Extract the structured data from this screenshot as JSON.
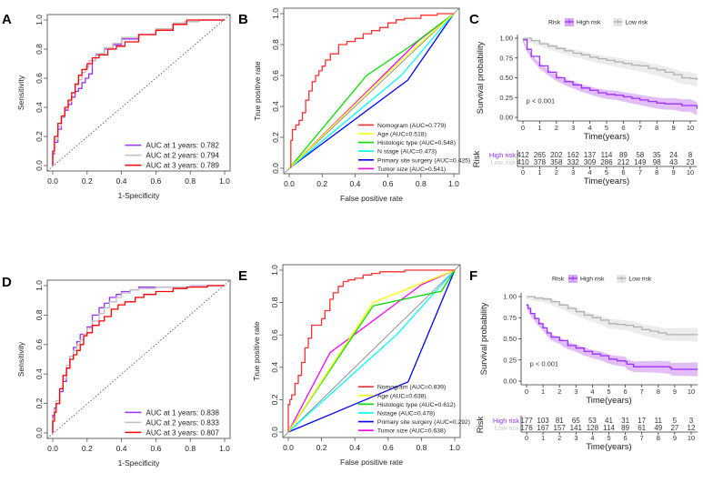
{
  "figure_panels": [
    "A",
    "B",
    "C",
    "D",
    "E",
    "F"
  ],
  "chart_data": [
    {
      "panel": "A",
      "type": "line",
      "title": "",
      "xlabel": "1-Specificity",
      "ylabel": "Sensitivity",
      "xlim": [
        0,
        1
      ],
      "ylim": [
        0,
        1
      ],
      "xticks": [
        "0.0",
        "0.2",
        "0.4",
        "0.6",
        "0.8",
        "1.0"
      ],
      "yticks": [
        "0.0",
        "0.2",
        "0.4",
        "0.6",
        "0.8",
        "1.0"
      ],
      "legend_position": "bottom-right",
      "reference_line": "diagonal-dotted",
      "series": [
        {
          "name": "AUC at 1 years: 0.782",
          "color": "#9B30FF",
          "x": [
            0,
            0.01,
            0.03,
            0.05,
            0.07,
            0.09,
            0.11,
            0.13,
            0.15,
            0.17,
            0.19,
            0.21,
            0.23,
            0.25,
            0.3,
            0.35,
            0.4,
            0.5,
            0.6,
            0.7,
            0.77,
            0.85,
            1.0
          ],
          "y": [
            0,
            0.08,
            0.16,
            0.25,
            0.33,
            0.38,
            0.42,
            0.47,
            0.51,
            0.53,
            0.57,
            0.6,
            0.63,
            0.72,
            0.76,
            0.8,
            0.83,
            0.87,
            0.9,
            0.93,
            0.97,
            0.99,
            1.0
          ]
        },
        {
          "name": "AUC at 2 years: 0.794",
          "color": "#BEBEBE",
          "x": [
            0,
            0.01,
            0.03,
            0.05,
            0.07,
            0.09,
            0.11,
            0.13,
            0.15,
            0.17,
            0.19,
            0.21,
            0.25,
            0.3,
            0.35,
            0.4,
            0.5,
            0.6,
            0.7,
            0.77,
            0.85,
            1.0
          ],
          "y": [
            0,
            0.09,
            0.18,
            0.27,
            0.33,
            0.39,
            0.44,
            0.5,
            0.55,
            0.59,
            0.64,
            0.68,
            0.72,
            0.77,
            0.81,
            0.84,
            0.88,
            0.9,
            0.94,
            0.98,
            0.99,
            1.0
          ]
        },
        {
          "name": "AUC at 3 years: 0.789",
          "color": "#FF0000",
          "x": [
            0,
            0.01,
            0.03,
            0.05,
            0.07,
            0.09,
            0.11,
            0.13,
            0.15,
            0.17,
            0.2,
            0.23,
            0.27,
            0.32,
            0.37,
            0.42,
            0.5,
            0.6,
            0.7,
            0.78,
            0.9,
            1.0
          ],
          "y": [
            0,
            0.1,
            0.2,
            0.29,
            0.34,
            0.4,
            0.45,
            0.5,
            0.56,
            0.62,
            0.66,
            0.7,
            0.74,
            0.76,
            0.8,
            0.82,
            0.85,
            0.9,
            0.93,
            0.97,
            1.0,
            1.0
          ]
        }
      ]
    },
    {
      "panel": "B",
      "type": "line",
      "title": "",
      "xlabel": "False positive rate",
      "ylabel": "True positive rate",
      "xlim": [
        0,
        1
      ],
      "ylim": [
        0,
        1
      ],
      "xticks": [
        "0.0",
        "0.2",
        "0.4",
        "0.6",
        "0.8",
        "1.0"
      ],
      "yticks": [
        "0.0",
        "0.2",
        "0.4",
        "0.6",
        "0.8",
        "1.0"
      ],
      "legend_position": "bottom-right",
      "reference_line": "diagonal-solid",
      "series": [
        {
          "name": "Nomogram (AUC=0.779)",
          "color": "#FF3030",
          "x": [
            0.01,
            0.01,
            0.02,
            0.04,
            0.06,
            0.08,
            0.1,
            0.12,
            0.14,
            0.16,
            0.18,
            0.2,
            0.22,
            0.25,
            0.3,
            0.35,
            0.4,
            0.45,
            0.5,
            0.55,
            0.6,
            0.65,
            0.7,
            0.8,
            0.9,
            0.92,
            1.0
          ],
          "y": [
            0,
            0.12,
            0.18,
            0.25,
            0.28,
            0.31,
            0.36,
            0.44,
            0.5,
            0.56,
            0.6,
            0.63,
            0.66,
            0.7,
            0.74,
            0.8,
            0.82,
            0.84,
            0.87,
            0.89,
            0.91,
            0.94,
            0.96,
            0.97,
            0.99,
            1.0,
            1.0
          ]
        },
        {
          "name": "Age (AUC=0.518)",
          "color": "#FFFF00",
          "x": [
            0,
            0.6,
            0.85,
            1.0
          ],
          "y": [
            0,
            0.62,
            0.86,
            1.0
          ]
        },
        {
          "name": "Histologic type (AUC=0.548)",
          "color": "#00DD00",
          "x": [
            0,
            0.47,
            0.75,
            1.0
          ],
          "y": [
            0,
            0.6,
            0.8,
            1.0
          ]
        },
        {
          "name": "N stage (AUC=0.473)",
          "color": "#00FFFF",
          "x": [
            0,
            0.68,
            1.0
          ],
          "y": [
            0,
            0.6,
            1.0
          ]
        },
        {
          "name": "Primary site surgery (AUC=0.425)",
          "color": "#0000FF",
          "x": [
            0,
            0.72,
            1.0
          ],
          "y": [
            0,
            0.57,
            1.0
          ]
        },
        {
          "name": "Tumor size (AUC=0.541)",
          "color": "#FF00FF",
          "x": [
            0,
            0.78,
            1.0
          ],
          "y": [
            0,
            0.82,
            1.0
          ]
        }
      ]
    },
    {
      "panel": "C",
      "type": "line",
      "subtype": "kaplan-meier",
      "xlabel": "Time(years)",
      "ylabel": "Survival probability",
      "xlim": [
        0,
        10.4
      ],
      "ylim": [
        0,
        1
      ],
      "xticks": [
        "0",
        "1",
        "2",
        "3",
        "4",
        "5",
        "6",
        "7",
        "8",
        "9",
        "10"
      ],
      "yticks": [
        "0.00",
        "0.25",
        "0.50",
        "0.75",
        "1.00"
      ],
      "legend_title": "Risk",
      "legend_position": "top",
      "annotation": "p < 0.001",
      "series": [
        {
          "name": "High risk",
          "color": "#9B30FF",
          "band_color": "#D8A8F5",
          "x": [
            0,
            0.25,
            0.5,
            1,
            1.5,
            2,
            2.5,
            3,
            3.5,
            4,
            4.5,
            5,
            5.5,
            6,
            6.5,
            7,
            7.5,
            8,
            8.5,
            9,
            9.5,
            10,
            10.4
          ],
          "y": [
            0.98,
            0.86,
            0.77,
            0.65,
            0.57,
            0.5,
            0.45,
            0.41,
            0.37,
            0.34,
            0.31,
            0.29,
            0.28,
            0.26,
            0.24,
            0.22,
            0.2,
            0.18,
            0.17,
            0.17,
            0.15,
            0.15,
            0.11
          ]
        },
        {
          "name": "Low risk",
          "color": "#B0B0B0",
          "band_color": "#E6E6E6",
          "x": [
            0,
            0.5,
            1,
            1.5,
            2,
            2.5,
            3,
            3.5,
            4,
            4.5,
            5,
            5.5,
            6,
            6.5,
            7,
            7.5,
            8,
            8.5,
            9,
            9.5,
            10,
            10.4
          ],
          "y": [
            1.0,
            0.97,
            0.93,
            0.9,
            0.87,
            0.84,
            0.81,
            0.79,
            0.76,
            0.74,
            0.72,
            0.7,
            0.68,
            0.66,
            0.65,
            0.62,
            0.6,
            0.57,
            0.54,
            0.5,
            0.49,
            0.47
          ]
        }
      ],
      "risk_table": {
        "title": "Risk",
        "times": [
          "0",
          "1",
          "2",
          "3",
          "4",
          "5",
          "6",
          "7",
          "8",
          "9",
          "10"
        ],
        "xlabel": "Time(years)",
        "rows": [
          {
            "name": "High risk",
            "values": [
              "412",
              "265",
              "202",
              "162",
              "137",
              "114",
              "89",
              "58",
              "35",
              "24",
              "8"
            ]
          },
          {
            "name": "Low risk",
            "values": [
              "410",
              "378",
              "358",
              "332",
              "309",
              "286",
              "212",
              "149",
              "98",
              "43",
              "23"
            ]
          }
        ]
      }
    },
    {
      "panel": "D",
      "type": "line",
      "xlabel": "1-Specificity",
      "ylabel": "Sensitivity",
      "xlim": [
        0,
        1
      ],
      "ylim": [
        0,
        1
      ],
      "xticks": [
        "0.0",
        "0.2",
        "0.4",
        "0.6",
        "0.8",
        "1.0"
      ],
      "yticks": [
        "0.0",
        "0.2",
        "0.4",
        "0.6",
        "0.8",
        "1.0"
      ],
      "legend_position": "bottom-right",
      "reference_line": "diagonal-dotted",
      "series": [
        {
          "name": "AUC at 1 years: 0.838",
          "color": "#9B30FF",
          "x": [
            0,
            0.01,
            0.02,
            0.04,
            0.06,
            0.08,
            0.1,
            0.12,
            0.14,
            0.16,
            0.18,
            0.2,
            0.23,
            0.27,
            0.3,
            0.33,
            0.37,
            0.4,
            0.45,
            0.5,
            0.6,
            0.8,
            1.0
          ],
          "y": [
            0,
            0.12,
            0.17,
            0.2,
            0.28,
            0.35,
            0.44,
            0.52,
            0.58,
            0.62,
            0.67,
            0.67,
            0.72,
            0.8,
            0.85,
            0.88,
            0.92,
            0.94,
            0.96,
            0.97,
            0.99,
            0.99,
            1.0
          ]
        },
        {
          "name": "AUC at 2 years: 0.833",
          "color": "#BEBEBE",
          "x": [
            0,
            0.01,
            0.02,
            0.04,
            0.06,
            0.08,
            0.1,
            0.12,
            0.14,
            0.16,
            0.18,
            0.2,
            0.23,
            0.27,
            0.3,
            0.33,
            0.37,
            0.4,
            0.45,
            0.5,
            0.6,
            0.8,
            1.0
          ],
          "y": [
            0,
            0.1,
            0.16,
            0.22,
            0.3,
            0.37,
            0.46,
            0.52,
            0.56,
            0.6,
            0.63,
            0.67,
            0.71,
            0.76,
            0.81,
            0.85,
            0.89,
            0.92,
            0.95,
            0.97,
            0.98,
            0.99,
            1.0
          ]
        },
        {
          "name": "AUC at 3 years: 0.807",
          "color": "#FF0000",
          "x": [
            0,
            0.01,
            0.02,
            0.04,
            0.06,
            0.08,
            0.1,
            0.12,
            0.14,
            0.16,
            0.18,
            0.2,
            0.23,
            0.27,
            0.3,
            0.34,
            0.38,
            0.42,
            0.48,
            0.53,
            0.6,
            0.7,
            0.78,
            0.9,
            1.0
          ],
          "y": [
            0,
            0.08,
            0.14,
            0.2,
            0.3,
            0.39,
            0.44,
            0.5,
            0.53,
            0.56,
            0.6,
            0.66,
            0.68,
            0.73,
            0.76,
            0.79,
            0.84,
            0.87,
            0.89,
            0.92,
            0.94,
            0.96,
            0.98,
            0.99,
            1.0
          ]
        }
      ]
    },
    {
      "panel": "E",
      "type": "line",
      "xlabel": "False positive rate",
      "ylabel": "True positive rate",
      "xlim": [
        0,
        1
      ],
      "ylim": [
        0,
        1
      ],
      "xticks": [
        "0.0",
        "0.2",
        "0.4",
        "0.6",
        "0.8",
        "1.0"
      ],
      "yticks": [
        "0.0",
        "0.2",
        "0.4",
        "0.6",
        "0.8",
        "1.0"
      ],
      "legend_position": "bottom-right",
      "reference_line": "diagonal-solid",
      "series": [
        {
          "name": "Nomogram (AUC=0.839)",
          "color": "#FF3030",
          "x": [
            0,
            0.0,
            0.01,
            0.02,
            0.04,
            0.06,
            0.08,
            0.1,
            0.12,
            0.14,
            0.16,
            0.2,
            0.22,
            0.25,
            0.27,
            0.3,
            0.33,
            0.36,
            0.4,
            0.45,
            0.5,
            0.55,
            0.6,
            0.7,
            1.0
          ],
          "y": [
            0,
            0.1,
            0.17,
            0.2,
            0.23,
            0.3,
            0.35,
            0.43,
            0.52,
            0.58,
            0.66,
            0.66,
            0.7,
            0.75,
            0.82,
            0.86,
            0.9,
            0.93,
            0.94,
            0.95,
            0.97,
            0.98,
            0.99,
            0.99,
            1.0
          ]
        },
        {
          "name": "Age (AUC=0.638)",
          "color": "#FFFF00",
          "x": [
            0,
            0.51,
            1.0
          ],
          "y": [
            0,
            0.8,
            1.0
          ]
        },
        {
          "name": "Histologic type (AUC=0.612)",
          "color": "#00DD00",
          "x": [
            0,
            0.51,
            0.92,
            1.0
          ],
          "y": [
            0,
            0.78,
            0.87,
            1.0
          ]
        },
        {
          "name": "Nstage (AUC=0.478)",
          "color": "#00FFFF",
          "x": [
            0,
            0.65,
            1.0
          ],
          "y": [
            0,
            0.6,
            1.0
          ]
        },
        {
          "name": "Primary site surgery (AUC=0.292)",
          "color": "#0000FF",
          "x": [
            0,
            0.72,
            1.0
          ],
          "y": [
            0,
            0.31,
            1.0
          ]
        },
        {
          "name": "Tumor size (AUC=0.638)",
          "color": "#FF00FF",
          "x": [
            0,
            0.25,
            0.8,
            1.0
          ],
          "y": [
            0,
            0.49,
            0.91,
            1.0
          ]
        }
      ]
    },
    {
      "panel": "F",
      "type": "line",
      "subtype": "kaplan-meier",
      "xlabel": "Time(years)",
      "ylabel": "Survival probability",
      "xlim": [
        0,
        10.4
      ],
      "ylim": [
        0,
        1
      ],
      "xticks": [
        "0",
        "1",
        "2",
        "3",
        "4",
        "5",
        "6",
        "7",
        "8",
        "9",
        "10"
      ],
      "yticks": [
        "0.00",
        "0.25",
        "0.50",
        "0.75",
        "1.00"
      ],
      "legend_title": "Risk",
      "legend_position": "top",
      "annotation": "p < 0.001",
      "series": [
        {
          "name": "High risk",
          "color": "#9B30FF",
          "band_color": "#D8A8F5",
          "x": [
            0,
            0.1,
            0.25,
            0.5,
            0.75,
            1,
            1.25,
            1.5,
            2,
            2.5,
            3,
            3.5,
            4,
            4.5,
            5,
            5.5,
            6,
            6.1,
            6.5,
            7,
            8,
            8.7,
            8.8,
            9,
            10,
            10.4
          ],
          "y": [
            0.9,
            0.86,
            0.8,
            0.74,
            0.68,
            0.63,
            0.57,
            0.52,
            0.48,
            0.42,
            0.39,
            0.35,
            0.32,
            0.3,
            0.26,
            0.24,
            0.23,
            0.2,
            0.17,
            0.17,
            0.17,
            0.16,
            0.14,
            0.14,
            0.14,
            0.14
          ]
        },
        {
          "name": "Low risk",
          "color": "#B0B0B0",
          "band_color": "#E6E6E6",
          "x": [
            0,
            0.5,
            1,
            1.5,
            2,
            2.5,
            3,
            3.5,
            4,
            4.5,
            5,
            5.5,
            6,
            6.5,
            7,
            7.5,
            8,
            8.5,
            9,
            10,
            10.4
          ],
          "y": [
            1.0,
            0.98,
            0.97,
            0.94,
            0.9,
            0.86,
            0.82,
            0.78,
            0.75,
            0.72,
            0.68,
            0.67,
            0.66,
            0.64,
            0.61,
            0.59,
            0.57,
            0.55,
            0.55,
            0.55,
            0.55
          ]
        }
      ],
      "risk_table": {
        "title": "Risk",
        "times": [
          "0",
          "1",
          "2",
          "3",
          "4",
          "5",
          "6",
          "7",
          "8",
          "9",
          "10"
        ],
        "xlabel": "Time(years)",
        "rows": [
          {
            "name": "High risk",
            "values": [
              "177",
              "103",
              "81",
              "65",
              "53",
              "41",
              "31",
              "17",
              "11",
              "5",
              "3"
            ]
          },
          {
            "name": "Low risk",
            "values": [
              "176",
              "167",
              "157",
              "141",
              "128",
              "114",
              "89",
              "61",
              "49",
              "27",
              "12"
            ]
          }
        ]
      }
    }
  ]
}
